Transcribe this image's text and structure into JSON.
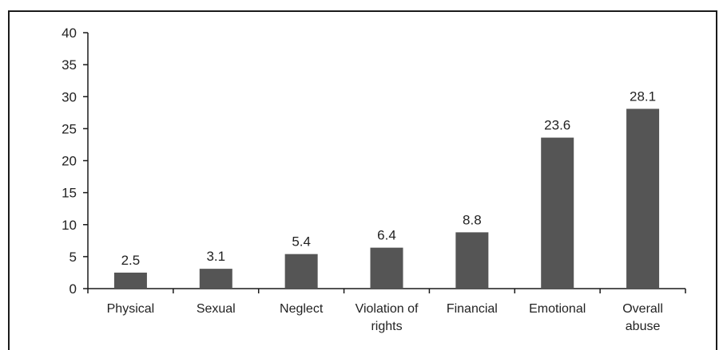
{
  "chart_data": {
    "type": "bar",
    "categories": [
      [
        "Physical"
      ],
      [
        "Sexual"
      ],
      [
        "Neglect"
      ],
      [
        "Violation of",
        "rights"
      ],
      [
        "Financial"
      ],
      [
        "Emotional"
      ],
      [
        "Overall",
        "abuse"
      ]
    ],
    "values": [
      2.5,
      3.1,
      5.4,
      6.4,
      8.8,
      23.6,
      28.1
    ],
    "data_labels": [
      "2.5",
      "3.1",
      "5.4",
      "6.4",
      "8.8",
      "23.6",
      "28.1"
    ],
    "y_ticks": [
      0,
      5,
      10,
      15,
      20,
      25,
      30,
      35,
      40
    ],
    "ylim": [
      0,
      40
    ],
    "title": "",
    "xlabel": "",
    "ylabel": "",
    "grid": false,
    "legend": "none",
    "bar_color": "#555555",
    "axis_color": "#1a1a1a"
  }
}
